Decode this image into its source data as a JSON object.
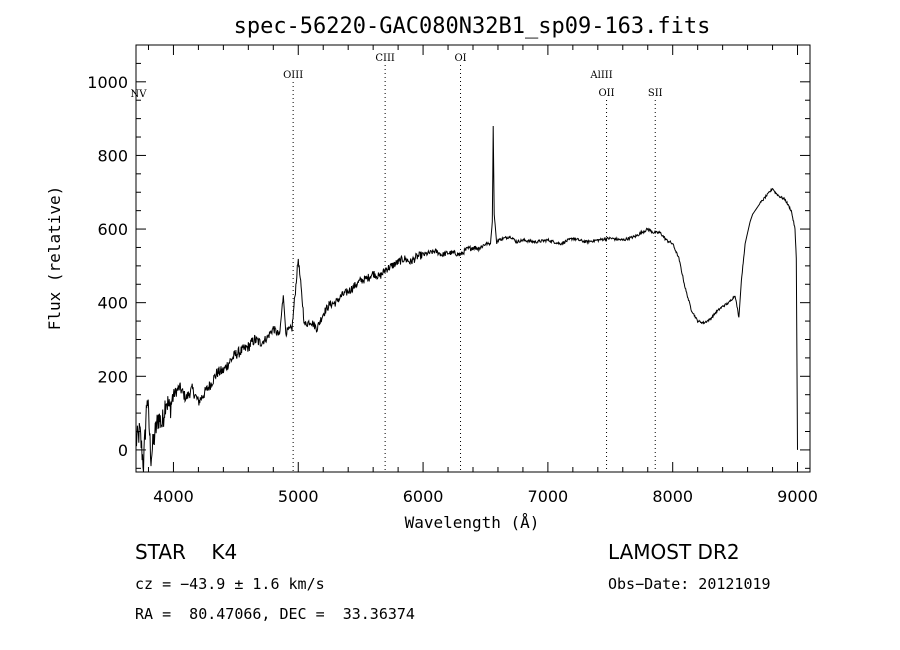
{
  "chart_data": {
    "type": "line",
    "title": "spec-56220-GAC080N32B1_sp09-163.fits",
    "xlabel": "Wavelength (Å)",
    "ylabel": "Flux (relative)",
    "xlim": [
      3700,
      9100
    ],
    "ylim": [
      -60,
      1100
    ],
    "xticks": [
      4000,
      5000,
      6000,
      7000,
      8000,
      9000
    ],
    "yticks": [
      0,
      200,
      400,
      600,
      800,
      1000
    ],
    "grid": false,
    "series": [
      {
        "x": [
          3700,
          3730,
          3760,
          3790,
          3820,
          3850,
          3880,
          3910,
          3940,
          3970,
          4000,
          4050,
          4100,
          4150,
          4200,
          4250,
          4300,
          4350,
          4400,
          4450,
          4500,
          4550,
          4600,
          4650,
          4700,
          4750,
          4800,
          4850,
          4880,
          4900,
          4950,
          5000,
          5050,
          5100,
          5150,
          5200,
          5250,
          5300,
          5350,
          5400,
          5450,
          5500,
          5550,
          5600,
          5650,
          5700,
          5750,
          5800,
          5850,
          5900,
          5950,
          6000,
          6050,
          6100,
          6150,
          6200,
          6250,
          6300,
          6350,
          6400,
          6450,
          6500,
          6540,
          6555,
          6562,
          6570,
          6580,
          6590,
          6600,
          6650,
          6700,
          6750,
          6800,
          6900,
          7000,
          7100,
          7200,
          7300,
          7400,
          7500,
          7600,
          7700,
          7800,
          7850,
          7900,
          7950,
          8000,
          8050,
          8100,
          8150,
          8200,
          8250,
          8300,
          8350,
          8400,
          8450,
          8500,
          8530,
          8550,
          8580,
          8600,
          8620,
          8640,
          8660,
          8680,
          8700,
          8750,
          8800,
          8820,
          8850,
          8900,
          8950,
          8980,
          8990,
          9000
        ],
        "y": [
          20,
          50,
          -40,
          150,
          -20,
          40,
          90,
          70,
          140,
          110,
          150,
          170,
          140,
          165,
          130,
          155,
          180,
          210,
          215,
          240,
          260,
          270,
          280,
          300,
          290,
          305,
          330,
          310,
          420,
          320,
          330,
          520,
          340,
          350,
          330,
          370,
          395,
          400,
          420,
          430,
          445,
          460,
          465,
          480,
          470,
          490,
          500,
          510,
          520,
          510,
          525,
          530,
          535,
          540,
          530,
          535,
          535,
          530,
          545,
          550,
          548,
          560,
          560,
          620,
          880,
          640,
          600,
          560,
          570,
          575,
          580,
          565,
          570,
          565,
          570,
          560,
          575,
          565,
          570,
          575,
          570,
          580,
          600,
          590,
          590,
          570,
          560,
          520,
          440,
          380,
          350,
          345,
          355,
          375,
          390,
          400,
          420,
          360,
          460,
          560,
          590,
          620,
          640,
          650,
          660,
          670,
          690,
          710,
          700,
          690,
          680,
          650,
          600,
          520,
          0
        ]
      }
    ],
    "lines": [
      {
        "label": "NV",
        "wavelength": 3720,
        "dotted": false
      },
      {
        "label": "OIII",
        "wavelength": 4959,
        "dotted": true
      },
      {
        "label": "CIII",
        "wavelength": 5696,
        "dotted": true
      },
      {
        "label": "OI",
        "wavelength": 6300,
        "dotted": true
      },
      {
        "label": "AlIII",
        "wavelength": 7430,
        "dotted": false
      },
      {
        "label": "OII",
        "wavelength": 7470,
        "dotted": true
      },
      {
        "label": "SII",
        "wavelength": 7860,
        "dotted": true
      }
    ]
  },
  "footer": {
    "class_label": "STAR",
    "subclass_label": "K4",
    "survey": "LAMOST DR2",
    "cz": "cz = −43.9 ± 1.6 km/s",
    "obsdate": "Obs−Date: 20121019",
    "coords": "RA =  80.47066, DEC =  33.36374"
  }
}
